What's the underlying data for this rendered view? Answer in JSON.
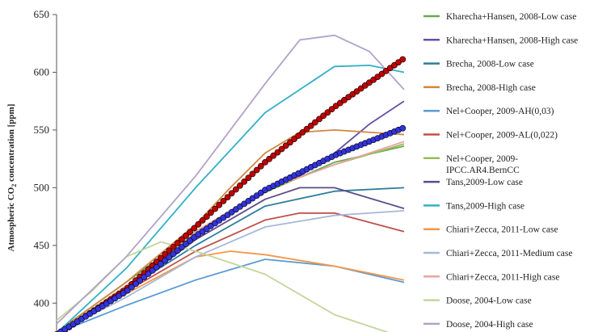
{
  "chart_data": {
    "type": "line",
    "title": "",
    "xlabel": "",
    "ylabel_main": "Atmospheric CO",
    "ylabel_sub": "2",
    "ylabel_rest": " concentration [ppm]",
    "ylim": [
      375,
      650
    ],
    "xlim": [
      0,
      100
    ],
    "yticks": [
      650,
      600,
      550,
      500,
      450,
      400
    ],
    "grid": false,
    "legend_position": "right",
    "series": [
      {
        "name": "Kharecha+Hansen, 2008-Low case",
        "color": "#6aa84f",
        "x": [
          0,
          20,
          40,
          60,
          80,
          100
        ],
        "y": [
          375,
          418,
          462,
          496,
          522,
          536
        ]
      },
      {
        "name": "Kharecha+Hansen, 2008-High case",
        "color": "#674ea7",
        "x": [
          0,
          20,
          40,
          60,
          70,
          80,
          90,
          100
        ],
        "y": [
          373,
          415,
          460,
          498,
          510,
          530,
          555,
          575
        ]
      },
      {
        "name": "Brecha, 2008-Low case",
        "color": "#2e7d9a",
        "x": [
          0,
          20,
          40,
          60,
          80,
          100
        ],
        "y": [
          375,
          412,
          450,
          484,
          497,
          500
        ]
      },
      {
        "name": "Brecha, 2008-High case",
        "color": "#d2873f",
        "x": [
          0,
          20,
          40,
          50,
          60,
          70,
          80,
          100
        ],
        "y": [
          375,
          418,
          468,
          500,
          530,
          548,
          550,
          546
        ]
      },
      {
        "name": "Nel+Cooper, 2009-AH(0,03)",
        "color": "#5b9bd5",
        "x": [
          0,
          20,
          40,
          60,
          80,
          100
        ],
        "y": [
          374,
          398,
          420,
          438,
          432,
          418
        ]
      },
      {
        "name": "Nel+Cooper, 2009-AL(0,022)",
        "color": "#c0504d",
        "x": [
          0,
          20,
          40,
          60,
          70,
          80,
          100
        ],
        "y": [
          374,
          410,
          445,
          472,
          478,
          478,
          462
        ]
      },
      {
        "name": "Nel+Cooper, 2009-IPCC.AR4.BernCC",
        "name_line1": "Nel+Cooper, 2009-",
        "name_line2": "IPCC.AR4.BernCC",
        "color": "#9bbb59",
        "x": [
          0,
          20,
          40,
          60,
          80,
          100
        ],
        "y": [
          374,
          410,
          462,
          498,
          520,
          538
        ]
      },
      {
        "name": "Tans,2009-Low case",
        "color": "#5f4b8b",
        "x": [
          0,
          20,
          40,
          60,
          70,
          80,
          100
        ],
        "y": [
          373,
          410,
          455,
          490,
          500,
          500,
          482
        ]
      },
      {
        "name": "Tans,2009-High case",
        "color": "#31b0c6",
        "x": [
          0,
          20,
          40,
          60,
          80,
          90,
          100
        ],
        "y": [
          374,
          430,
          500,
          565,
          605,
          606,
          600
        ]
      },
      {
        "name": "Chiari+Zecca, 2011-Low case",
        "color": "#f79646",
        "x": [
          0,
          20,
          40,
          50,
          60,
          80,
          100
        ],
        "y": [
          374,
          408,
          440,
          445,
          442,
          432,
          420
        ]
      },
      {
        "name": "Chiari+Zecca, 2011-Medium case",
        "color": "#a6b8db",
        "x": [
          0,
          20,
          40,
          60,
          80,
          100
        ],
        "y": [
          374,
          405,
          440,
          466,
          476,
          480
        ]
      },
      {
        "name": "Chiari+Zecca, 2011-High case",
        "color": "#e6a4a1",
        "x": [
          0,
          20,
          40,
          60,
          80,
          100
        ],
        "y": [
          374,
          415,
          462,
          498,
          520,
          540
        ]
      },
      {
        "name": "Doose, 2004-Low case",
        "color": "#c3d69b",
        "x": [
          0,
          10,
          20,
          30,
          40,
          60,
          80,
          100
        ],
        "y": [
          385,
          410,
          440,
          453,
          445,
          425,
          390,
          370
        ]
      },
      {
        "name": "Doose, 2004-High case",
        "color": "#b2a2c7",
        "x": [
          0,
          20,
          40,
          60,
          70,
          80,
          90,
          100
        ],
        "y": [
          382,
          440,
          510,
          590,
          628,
          632,
          618,
          585
        ]
      }
    ],
    "highlight_series": [
      {
        "color": "#c00000",
        "marker": "circle",
        "x": [
          0,
          20,
          40,
          60,
          80,
          100
        ],
        "y": [
          372,
          412,
          466,
          522,
          570,
          612
        ]
      },
      {
        "color": "#3333dd",
        "marker": "circle",
        "x": [
          0,
          20,
          40,
          60,
          80,
          100
        ],
        "y": [
          373,
          410,
          458,
          498,
          528,
          552
        ]
      }
    ]
  }
}
